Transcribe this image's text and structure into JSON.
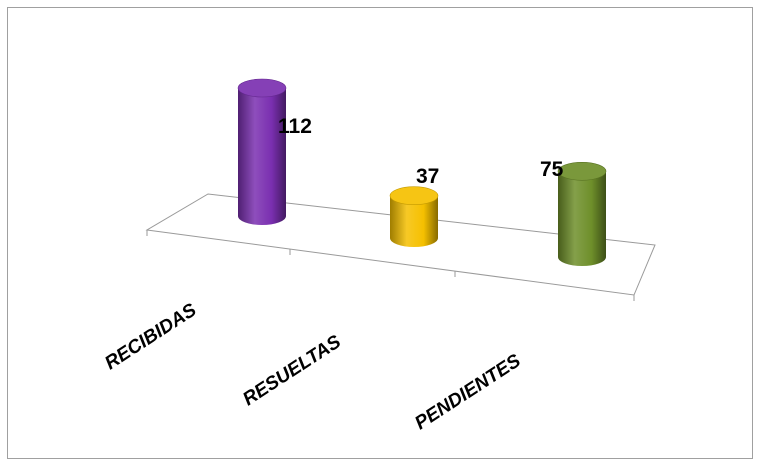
{
  "chart_data": {
    "type": "bar",
    "categories": [
      "RECIBIDAS",
      "RESUELTAS",
      "PENDIENTES"
    ],
    "values": [
      112,
      37,
      75
    ],
    "data_labels": [
      "112",
      "37",
      "75"
    ],
    "colors": [
      "#7a2fb0",
      "#f5c000",
      "#6e8f2a"
    ],
    "ylim": [
      0,
      112
    ],
    "grid": false,
    "legend": "none",
    "style": "3d-cylinder"
  }
}
